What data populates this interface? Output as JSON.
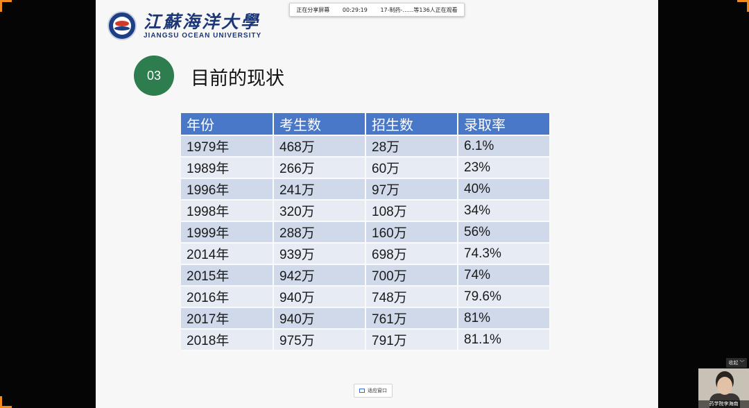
{
  "share_bar": {
    "status": "正在分享屏幕",
    "elapsed": "00:29:19",
    "viewers": "17-制药-……等136人正在观看"
  },
  "slide": {
    "university_cn": "江蘇海洋大學",
    "university_en": "JIANGSU OCEAN UNIVERSITY",
    "section_number": "03",
    "section_title": "目前的现状",
    "table": {
      "headers": [
        "年份",
        "考生数",
        "招生数",
        "录取率"
      ],
      "rows": [
        [
          "1979年",
          "468万",
          "28万",
          "6.1%"
        ],
        [
          "1989年",
          "266万",
          "60万",
          "23%"
        ],
        [
          "1996年",
          "241万",
          "97万",
          "40%"
        ],
        [
          "1998年",
          "320万",
          "108万",
          "34%"
        ],
        [
          "1999年",
          "288万",
          "160万",
          "56%"
        ],
        [
          "2014年",
          "939万",
          "698万",
          "74.3%"
        ],
        [
          "2015年",
          "942万",
          "700万",
          "74%"
        ],
        [
          "2016年",
          "940万",
          "748万",
          "79.6%"
        ],
        [
          "2017年",
          "940万",
          "761万",
          "81%"
        ],
        [
          "2018年",
          "975万",
          "791万",
          "81.1%"
        ]
      ]
    }
  },
  "controls": {
    "fit_window_label": "适应窗口",
    "collapse_label": "收起"
  },
  "camera": {
    "participant_name": "药学院李海南"
  },
  "colors": {
    "accent_orange": "#f08a1c",
    "table_header": "#4a78c8",
    "section_badge": "#2e7d4e"
  }
}
